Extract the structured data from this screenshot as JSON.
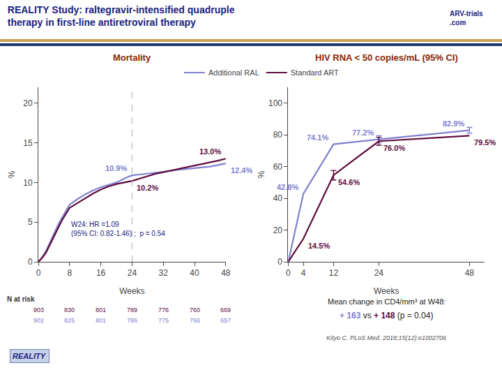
{
  "title": "REALITY Study: raltegravir-intensified quadruple\ntherapy in first-line antiretroviral therapy",
  "logo": "ARV-trials\n.com",
  "chart_data": [
    {
      "type": "line",
      "title": "Mortality",
      "xlabel": "Weeks",
      "ylabel": "%",
      "x": [
        0,
        1,
        2,
        3,
        4,
        5,
        6,
        7,
        8,
        10,
        12,
        14,
        16,
        18,
        20,
        22,
        24,
        26,
        28,
        30,
        32,
        34,
        36,
        38,
        40,
        42,
        44,
        46,
        48
      ],
      "series": [
        {
          "name": "Additional RAL",
          "color": "#8080d0",
          "values": [
            0,
            0.6,
            1.4,
            2.5,
            3.5,
            4.6,
            5.5,
            6.4,
            7.2,
            7.9,
            8.5,
            9.0,
            9.4,
            9.7,
            10.0,
            10.5,
            10.9,
            11.0,
            11.1,
            11.2,
            11.35,
            11.5,
            11.6,
            11.7,
            11.8,
            11.9,
            12.0,
            12.2,
            12.4
          ],
          "value_labels": [
            null,
            null,
            null,
            null,
            null,
            null,
            null,
            null,
            null,
            null,
            null,
            null,
            null,
            null,
            null,
            null,
            "10.9%",
            null,
            null,
            null,
            null,
            null,
            null,
            null,
            null,
            null,
            null,
            null,
            "12.4%"
          ]
        },
        {
          "name": "Standard ART",
          "color": "#5c0a3c",
          "values": [
            0,
            0.5,
            1.2,
            2.2,
            3.2,
            4.3,
            5.2,
            6.0,
            6.8,
            7.4,
            8.0,
            8.6,
            9.1,
            9.5,
            9.8,
            10.0,
            10.2,
            10.5,
            10.8,
            11.1,
            11.3,
            11.5,
            11.7,
            11.9,
            12.1,
            12.3,
            12.5,
            12.75,
            13.0
          ],
          "value_labels": [
            null,
            null,
            null,
            null,
            null,
            null,
            null,
            null,
            null,
            null,
            null,
            null,
            null,
            null,
            null,
            null,
            "10.2%",
            null,
            null,
            null,
            null,
            null,
            null,
            null,
            null,
            null,
            null,
            null,
            "13.0%"
          ]
        }
      ],
      "data_labels": true,
      "xlim": [
        0,
        48
      ],
      "ylim": [
        0,
        22
      ],
      "xticks": [
        0,
        8,
        16,
        24,
        32,
        40,
        48
      ],
      "yticks": [
        0,
        5,
        10,
        15,
        20
      ],
      "grid": false,
      "legend": "top",
      "vline": 24,
      "annotation": "W24: HR =1.09\n(95% CI: 0.82-1.46) ;  p = 0.54",
      "n_at_risk": {
        "label": "N at risk",
        "x": [
          0,
          8,
          16,
          24,
          32,
          40,
          48
        ],
        "rows": [
          {
            "color": "#5c0a3c",
            "values": [
              903,
              830,
              801,
              789,
              776,
              760,
              669
            ]
          },
          {
            "color": "#8080d0",
            "values": [
              902,
              825,
              801,
              786,
              775,
              766,
              657
            ]
          }
        ]
      }
    },
    {
      "type": "line",
      "title": "HIV RNA < 50 copies/mL (95% CI)",
      "xlabel": "Weeks",
      "ylabel": "%",
      "x": [
        0,
        4,
        12,
        24,
        48
      ],
      "series": [
        {
          "name": "Additional RAL",
          "color": "#8080d0",
          "values": [
            0,
            42.8,
            74.1,
            77.2,
            82.9
          ],
          "value_labels": [
            null,
            "42.8%",
            "74.1%",
            "77.2%",
            "82.9%"
          ],
          "yerr": [
            null,
            null,
            null,
            2.2,
            1.8
          ]
        },
        {
          "name": "Standard ART",
          "color": "#5c0a3c",
          "values": [
            0,
            14.5,
            54.6,
            76.0,
            79.5
          ],
          "value_labels": [
            null,
            "14.5%",
            "54.6%",
            "76.0%",
            "79.5%"
          ],
          "yerr": [
            null,
            null,
            3.0,
            2.5,
            null
          ]
        }
      ],
      "data_labels": true,
      "xlim": [
        0,
        52
      ],
      "ylim": [
        0,
        110
      ],
      "xticks": [
        0,
        4,
        12,
        24,
        48
      ],
      "yticks": [
        0,
        20,
        40,
        60,
        80,
        100
      ],
      "grid": false,
      "legend": "top"
    }
  ],
  "cd4_note": {
    "line1": "Mean change in CD4/mm³ at W48:",
    "line2": [
      {
        "text": "+ 163",
        "color": "#8080d0"
      },
      {
        "text": " vs "
      },
      {
        "text": "+ 148",
        "color": "#5c0a3c"
      },
      {
        "text": " (p = 0.04)"
      }
    ]
  },
  "source": "Kityo C. PLoS Med. 2018;15(12):e1002706",
  "badge": "REALITY"
}
